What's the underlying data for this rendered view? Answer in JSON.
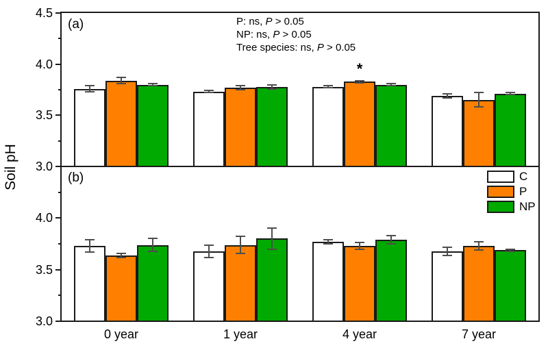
{
  "ylabel": "Soil pH",
  "colors": {
    "frame": "#1A1A1A",
    "bar_border": "#1A1A1A",
    "error_bar": "#4D4D4D",
    "control_white": "#FFFFFF",
    "p_orange": "#FF8000",
    "np_green": "#00AA00"
  },
  "legend": {
    "items": [
      {
        "label": "C",
        "color": "#FFFFFF"
      },
      {
        "label": "P",
        "color": "#FF8000"
      },
      {
        "label": "NP",
        "color": "#00AA00"
      }
    ]
  },
  "stats_note": {
    "lines": [
      [
        {
          "t": "P: ns, "
        },
        {
          "t": "P",
          "i": true
        },
        {
          "t": " > 0.05"
        }
      ],
      [
        {
          "t": "NP: ns, "
        },
        {
          "t": "P",
          "i": true
        },
        {
          "t": " > 0.05"
        }
      ],
      [
        {
          "t": "Tree species: ns, "
        },
        {
          "t": "P",
          "i": true
        },
        {
          "t": " > 0.05"
        }
      ]
    ]
  },
  "x_axis": {
    "categories": [
      "0 year",
      "1 year",
      "4 year",
      "7 year"
    ]
  },
  "chart_data": [
    {
      "type": "bar",
      "panel_label": "(a)",
      "categories": [
        "0 year",
        "1 year",
        "4 year",
        "7 year"
      ],
      "ylim": [
        3.0,
        4.5
      ],
      "yticks_major": [
        3.0,
        3.5,
        4.0,
        4.5
      ],
      "ytick_labels": [
        "3.0",
        "3.5",
        "4.0",
        "4.5"
      ],
      "yticks_minor": [
        3.25,
        3.75,
        4.25
      ],
      "show_x_labels": false,
      "legend_position": "none",
      "series": [
        {
          "name": "C",
          "color": "#FFFFFF",
          "values": [
            3.76,
            3.73,
            3.78,
            3.69
          ],
          "errors": [
            0.03,
            0.01,
            0.01,
            0.02
          ]
        },
        {
          "name": "P",
          "color": "#FF8000",
          "values": [
            3.84,
            3.77,
            3.83,
            3.65
          ],
          "errors": [
            0.03,
            0.02,
            0.01,
            0.07
          ]
        },
        {
          "name": "NP",
          "color": "#00AA00",
          "values": [
            3.8,
            3.78,
            3.8,
            3.71
          ],
          "errors": [
            0.01,
            0.02,
            0.01,
            0.01
          ]
        }
      ],
      "annotations": [
        {
          "text": "*",
          "category_index": 2,
          "series_index": 1,
          "meaning": "significant difference above P bar at 4 year"
        }
      ]
    },
    {
      "type": "bar",
      "panel_label": "(b)",
      "categories": [
        "0 year",
        "1 year",
        "4 year",
        "7 year"
      ],
      "ylim": [
        3.0,
        4.5
      ],
      "yticks_major": [
        3.0,
        3.5,
        4.0
      ],
      "ytick_labels": [
        "3.0",
        "3.5",
        "4.0"
      ],
      "yticks_minor": [
        3.25,
        3.75,
        4.25
      ],
      "show_x_labels": true,
      "legend_position": "top-right",
      "series": [
        {
          "name": "C",
          "color": "#FFFFFF",
          "values": [
            3.73,
            3.68,
            3.77,
            3.68
          ],
          "errors": [
            0.06,
            0.06,
            0.02,
            0.04
          ]
        },
        {
          "name": "P",
          "color": "#FF8000",
          "values": [
            3.64,
            3.74,
            3.73,
            3.73
          ],
          "errors": [
            0.02,
            0.08,
            0.03,
            0.04
          ]
        },
        {
          "name": "NP",
          "color": "#00AA00",
          "values": [
            3.74,
            3.8,
            3.79,
            3.69
          ],
          "errors": [
            0.06,
            0.1,
            0.04,
            0.01
          ]
        }
      ],
      "annotations": []
    }
  ]
}
